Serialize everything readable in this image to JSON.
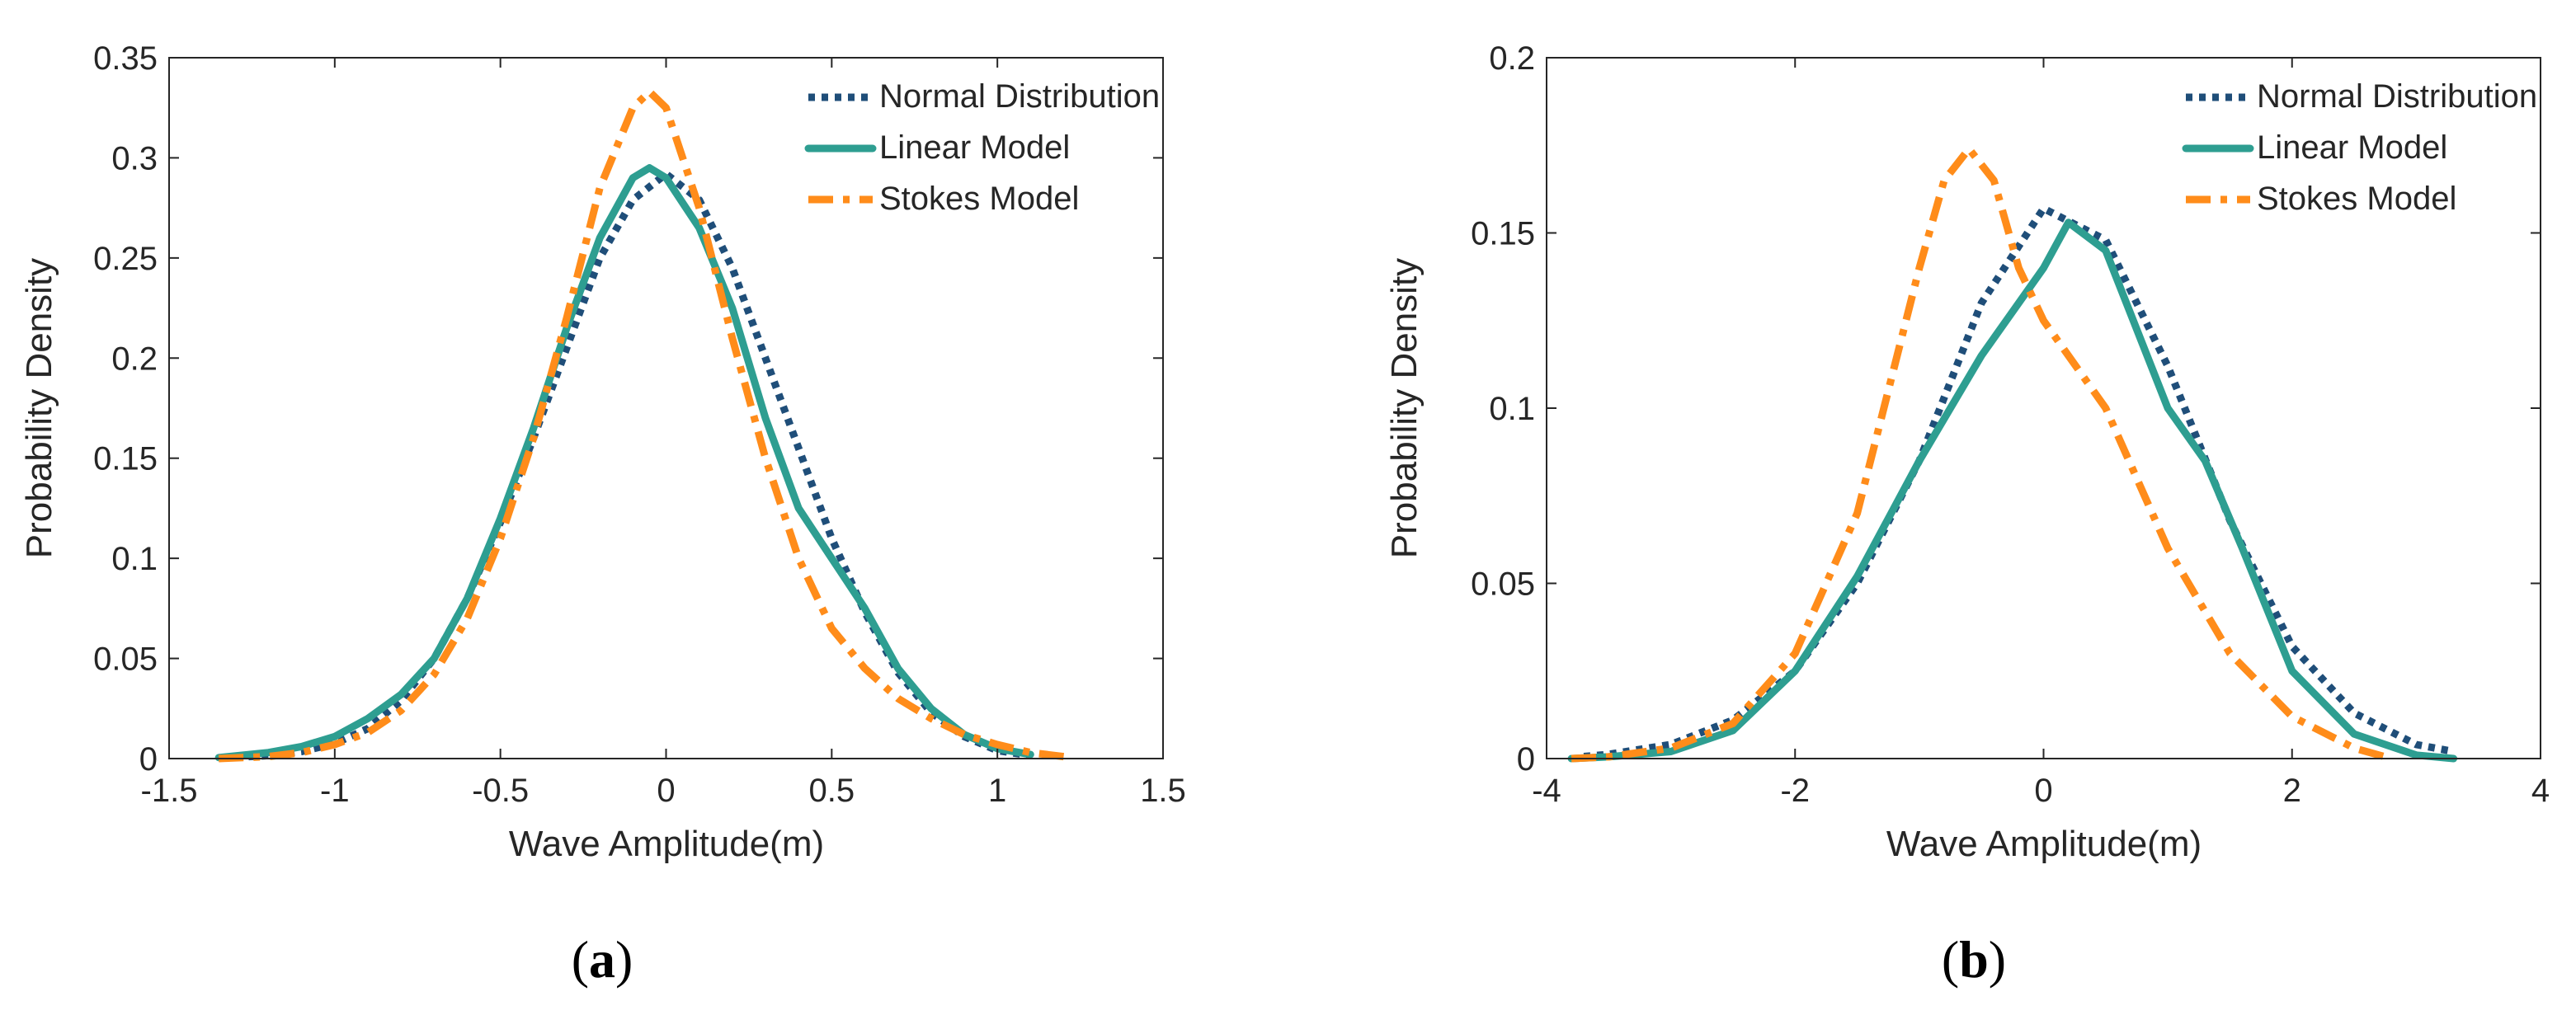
{
  "chart_data": [
    {
      "type": "line",
      "panel_label": "a",
      "xlabel": "Wave Amplitude(m)",
      "ylabel": "Probability Density",
      "xlim": [
        -1.5,
        1.5
      ],
      "ylim": [
        0,
        0.35
      ],
      "xticks": [
        -1.5,
        -1,
        -0.5,
        0,
        0.5,
        1,
        1.5
      ],
      "xtick_labels": [
        "-1.5",
        "-1",
        "-0.5",
        "0",
        "0.5",
        "1",
        "1.5"
      ],
      "yticks": [
        0,
        0.05,
        0.1,
        0.15,
        0.2,
        0.25,
        0.3,
        0.35
      ],
      "ytick_labels": [
        "0",
        "0.05",
        "0.1",
        "0.15",
        "0.2",
        "0.25",
        "0.3",
        "0.35"
      ],
      "legend_position": "top-right",
      "series": [
        {
          "name": "Normal Distribution",
          "color": "#1f4e79",
          "style": "dotted",
          "x": [
            -1.3,
            -1.2,
            -1.1,
            -1.0,
            -0.9,
            -0.8,
            -0.7,
            -0.6,
            -0.5,
            -0.4,
            -0.3,
            -0.2,
            -0.1,
            0.0,
            0.1,
            0.2,
            0.3,
            0.4,
            0.5,
            0.6,
            0.7,
            0.8,
            0.9,
            1.0,
            1.1
          ],
          "y": [
            0.0006,
            0.0015,
            0.0035,
            0.0075,
            0.015,
            0.029,
            0.05,
            0.08,
            0.118,
            0.16,
            0.205,
            0.25,
            0.279,
            0.292,
            0.279,
            0.245,
            0.2,
            0.155,
            0.11,
            0.073,
            0.043,
            0.023,
            0.011,
            0.004,
            0.0015
          ]
        },
        {
          "name": "Linear Model",
          "color": "#2e9e91",
          "style": "solid",
          "x": [
            -1.35,
            -1.2,
            -1.1,
            -1.0,
            -0.9,
            -0.8,
            -0.7,
            -0.6,
            -0.5,
            -0.4,
            -0.3,
            -0.2,
            -0.1,
            -0.05,
            0.0,
            0.1,
            0.2,
            0.3,
            0.4,
            0.5,
            0.6,
            0.7,
            0.8,
            0.9,
            1.0,
            1.1
          ],
          "y": [
            0.0005,
            0.003,
            0.006,
            0.011,
            0.02,
            0.032,
            0.05,
            0.08,
            0.12,
            0.165,
            0.215,
            0.26,
            0.29,
            0.295,
            0.29,
            0.265,
            0.225,
            0.17,
            0.125,
            0.1,
            0.075,
            0.045,
            0.025,
            0.012,
            0.005,
            0.002
          ]
        },
        {
          "name": "Stokes Model",
          "color": "#ff8c1a",
          "style": "dashdot",
          "x": [
            -1.35,
            -1.2,
            -1.1,
            -1.0,
            -0.9,
            -0.8,
            -0.7,
            -0.6,
            -0.5,
            -0.4,
            -0.3,
            -0.2,
            -0.1,
            -0.05,
            0.0,
            0.1,
            0.2,
            0.3,
            0.4,
            0.5,
            0.6,
            0.7,
            0.8,
            0.9,
            1.0,
            1.1,
            1.2
          ],
          "y": [
            0.0,
            0.001,
            0.003,
            0.007,
            0.013,
            0.024,
            0.042,
            0.07,
            0.11,
            0.16,
            0.22,
            0.285,
            0.325,
            0.333,
            0.325,
            0.275,
            0.21,
            0.15,
            0.1,
            0.065,
            0.045,
            0.03,
            0.02,
            0.012,
            0.007,
            0.003,
            0.001
          ]
        }
      ]
    },
    {
      "type": "line",
      "panel_label": "b",
      "xlabel": "Wave Amplitude(m)",
      "ylabel": "Probability Density",
      "xlim": [
        -4,
        4
      ],
      "ylim": [
        0,
        0.2
      ],
      "xticks": [
        -4,
        -2,
        0,
        2,
        4
      ],
      "xtick_labels": [
        "-4",
        "-2",
        "0",
        "2",
        "4"
      ],
      "yticks": [
        0,
        0.05,
        0.1,
        0.15,
        0.2
      ],
      "ytick_labels": [
        "0",
        "0.05",
        "0.1",
        "0.15",
        "0.2"
      ],
      "legend_position": "top-right",
      "series": [
        {
          "name": "Normal Distribution",
          "color": "#1f4e79",
          "style": "dotted",
          "x": [
            -3.7,
            -3.5,
            -3.0,
            -2.5,
            -2.0,
            -1.5,
            -1.0,
            -0.5,
            0.0,
            0.5,
            1.0,
            1.5,
            2.0,
            2.5,
            3.0,
            3.3
          ],
          "y": [
            0.0006,
            0.0012,
            0.004,
            0.011,
            0.025,
            0.05,
            0.085,
            0.13,
            0.157,
            0.148,
            0.112,
            0.068,
            0.032,
            0.013,
            0.004,
            0.002
          ]
        },
        {
          "name": "Linear Model",
          "color": "#2e9e91",
          "style": "solid",
          "x": [
            -3.8,
            -3.5,
            -3.0,
            -2.5,
            -2.0,
            -1.5,
            -1.0,
            -0.5,
            0.0,
            0.2,
            0.5,
            1.0,
            1.3,
            1.6,
            2.0,
            2.5,
            3.0,
            3.3
          ],
          "y": [
            0.0,
            0.0005,
            0.002,
            0.008,
            0.025,
            0.052,
            0.085,
            0.115,
            0.14,
            0.153,
            0.145,
            0.1,
            0.085,
            0.06,
            0.025,
            0.007,
            0.001,
            0.0
          ]
        },
        {
          "name": "Stokes Model",
          "color": "#ff8c1a",
          "style": "dashdot",
          "x": [
            -3.8,
            -3.5,
            -3.0,
            -2.5,
            -2.0,
            -1.5,
            -1.0,
            -0.8,
            -0.6,
            -0.4,
            -0.2,
            0.0,
            0.5,
            1.0,
            1.5,
            2.0,
            2.5,
            2.8
          ],
          "y": [
            0.0,
            0.0005,
            0.003,
            0.01,
            0.03,
            0.07,
            0.14,
            0.165,
            0.174,
            0.165,
            0.14,
            0.125,
            0.1,
            0.06,
            0.03,
            0.012,
            0.003,
            0.0
          ]
        }
      ]
    }
  ]
}
